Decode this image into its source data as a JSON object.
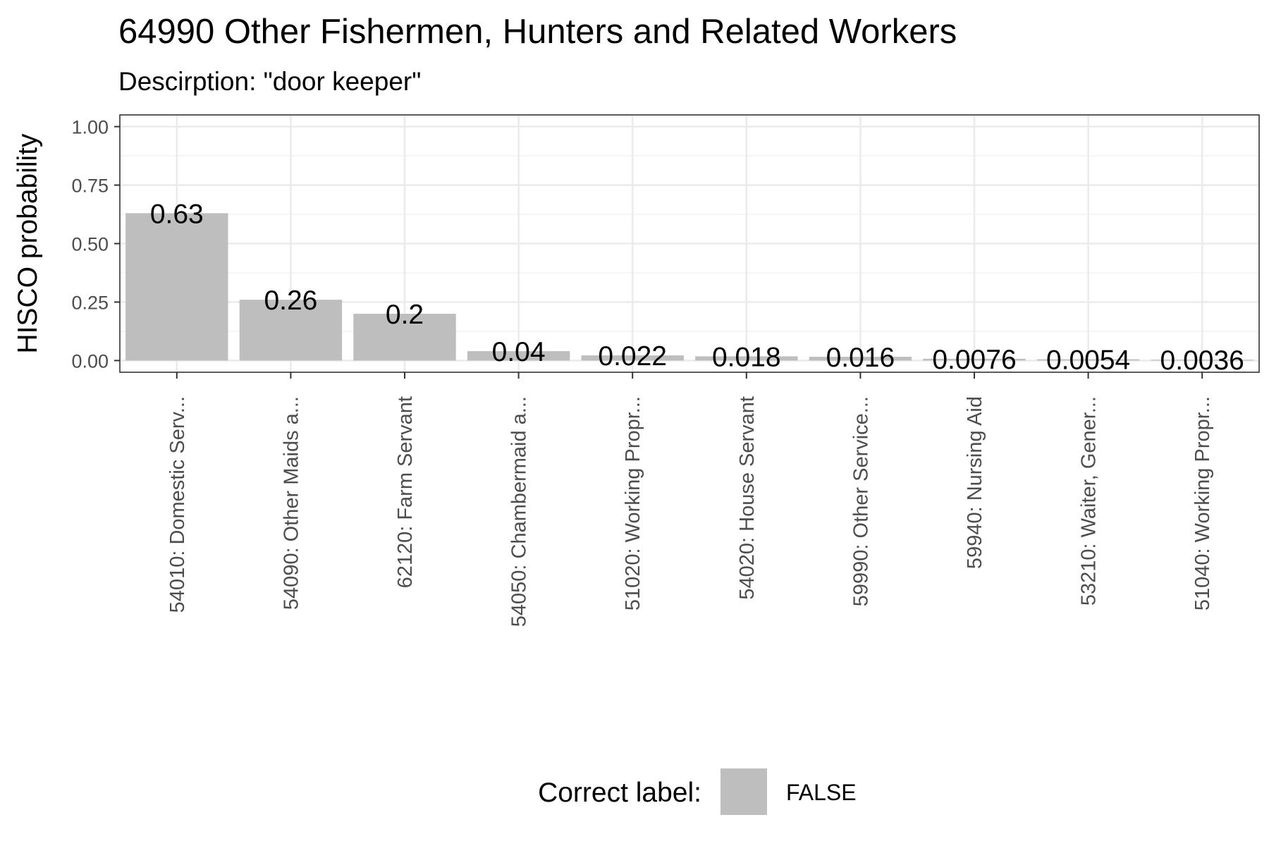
{
  "chart_data": {
    "type": "bar",
    "title": "64990 Other Fishermen, Hunters and Related Workers",
    "subtitle": "Descirption: \"door keeper\"",
    "xlabel": "",
    "ylabel": "HISCO probability",
    "ylim": [
      0,
      1
    ],
    "yticks": [
      "0.00",
      "0.25",
      "0.50",
      "0.75",
      "1.00"
    ],
    "grid": true,
    "categories": [
      "54010: Domestic Serv...",
      "54090: Other Maids a...",
      "62120: Farm Servant",
      "54050: Chambermaid a...",
      "51020: Working Propr...",
      "54020: House Servant",
      "59990: Other Service...",
      "59940: Nursing Aid",
      "53210: Waiter, Gener...",
      "51040: Working Propr..."
    ],
    "values": [
      0.63,
      0.26,
      0.2,
      0.04,
      0.022,
      0.018,
      0.016,
      0.0076,
      0.0054,
      0.0036
    ],
    "value_labels": [
      "0.63",
      "0.26",
      "0.2",
      "0.04",
      "0.022",
      "0.018",
      "0.016",
      "0.0076",
      "0.0054",
      "0.0036"
    ],
    "series_color": "#bebebe",
    "legend": {
      "title": "Correct label:",
      "entries": [
        {
          "label": "FALSE",
          "color": "#bebebe"
        }
      ],
      "position": "bottom"
    }
  }
}
